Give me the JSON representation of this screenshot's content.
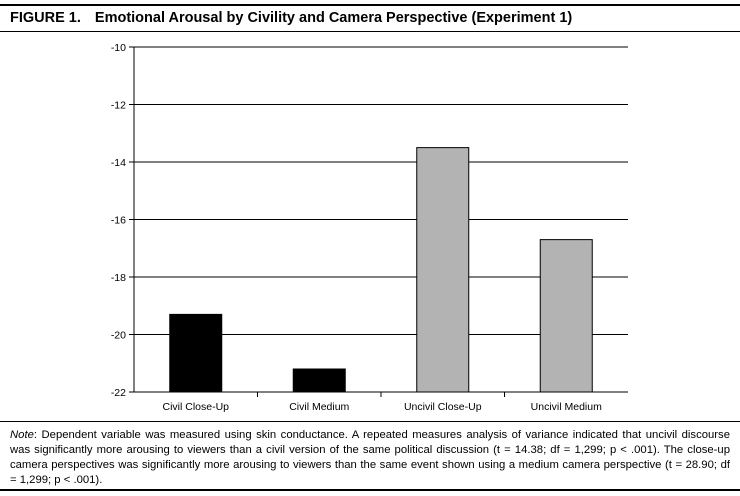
{
  "figure": {
    "label": "FIGURE 1.",
    "title": "Emotional Arousal by Civility and Camera Perspective (Experiment 1)"
  },
  "note": {
    "lead": "Note",
    "text": ": Dependent variable was measured using skin conductance. A repeated measures analysis of variance indicated that uncivil discourse was significantly more arousing to viewers than a civil version of the same political discussion (t = 14.38; df = 1,299; p < .001). The close-up camera perspectives was significantly more arousing to viewers than the same event shown using a medium camera perspective (t = 28.90; df = 1,299; p < .001)."
  },
  "chart_data": {
    "type": "bar",
    "title": "Emotional Arousal by Civility and Camera Perspective (Experiment 1)",
    "xlabel": "",
    "ylabel": "",
    "categories": [
      "Civil Close-Up",
      "Civil Medium",
      "Uncivil Close-Up",
      "Uncivil Medium"
    ],
    "values": [
      -19.3,
      -21.2,
      -13.5,
      -16.7
    ],
    "bar_colors": [
      "#000000",
      "#000000",
      "#b3b3b3",
      "#b3b3b3"
    ],
    "ylim": [
      -22,
      -10
    ],
    "yticks": [
      -10,
      -12,
      -14,
      -16,
      -18,
      -20,
      -22
    ],
    "ytick_labels": [
      "-10",
      "-12",
      "-14",
      "-16",
      "-18",
      "-20",
      "-22"
    ],
    "bar_base": -22,
    "grid": true,
    "legend": "none"
  }
}
